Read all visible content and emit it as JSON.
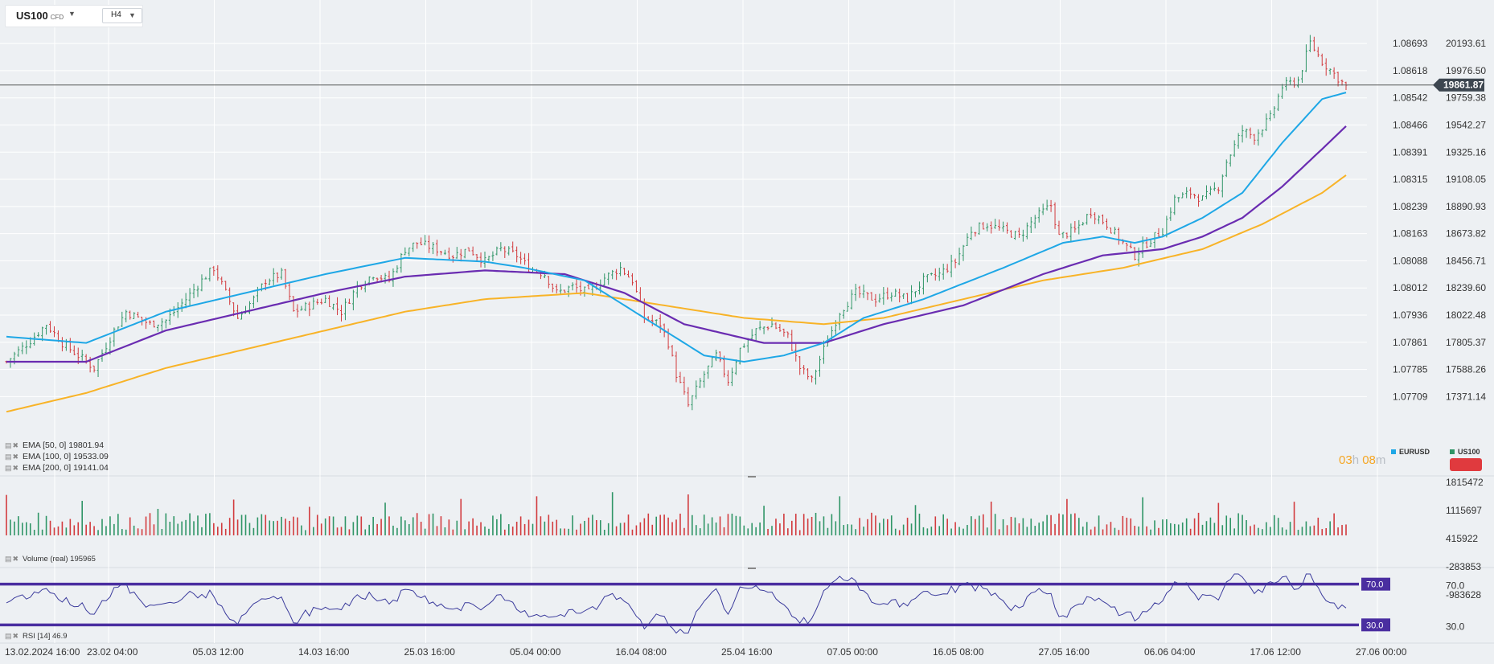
{
  "instrument": {
    "symbol": "US100",
    "type": "CFD",
    "timeframe": "H4"
  },
  "colors": {
    "ema50": "#1ea7e6",
    "ema100": "#6a2cb1",
    "ema200": "#f8b327",
    "bull": "#2f9566",
    "bear": "#d23b3e",
    "rsi": "#3b3b9c",
    "rsi_level": "#4a2ea0",
    "price_line": "#555555"
  },
  "indicators": {
    "ema50": "EMA [50, 0] 19801.94",
    "ema100": "EMA [100, 0] 19533.09",
    "ema200": "EMA [200, 0] 19141.04",
    "volume": "Volume  (real)  195965",
    "rsi": "RSI [14] 46.9"
  },
  "timer": {
    "hours": "03",
    "h": "h",
    "minutes": "08",
    "m": "m"
  },
  "compare": {
    "eurusd": "EURUSD",
    "us100": "US100"
  },
  "chart_data": [
    {
      "type": "candlestick",
      "title": "US100",
      "y_axis_right": {
        "ticks": [
          "20193.61",
          "19976.50",
          "19759.38",
          "19542.27",
          "19325.16",
          "19108.05",
          "18890.93",
          "18673.82",
          "18456.71",
          "18239.60",
          "18022.48",
          "17805.37",
          "17588.26",
          "17371.14"
        ],
        "range": [
          17200,
          20400
        ]
      },
      "y_axis_left_compare": {
        "ticks": [
          "1.08693",
          "1.08618",
          "1.08542",
          "1.08466",
          "1.08391",
          "1.08315",
          "1.08239",
          "1.08163",
          "1.08088",
          "1.08012",
          "1.07936",
          "1.07861",
          "1.07785",
          "1.07709"
        ]
      },
      "x_ticks": [
        "13.02.2024  16:00",
        "23.02  04:00",
        "05.03  12:00",
        "14.03  16:00",
        "25.03  16:00",
        "05.04  00:00",
        "16.04  08:00",
        "25.04  16:00",
        "07.05  00:00",
        "16.05  08:00",
        "27.05  16:00",
        "06.06  04:00",
        "17.06  12:00",
        "27.06  00:00"
      ],
      "current_price": "19861.87",
      "close_path": [
        [
          0,
          17650
        ],
        [
          6,
          17820
        ],
        [
          10,
          17950
        ],
        [
          14,
          17800
        ],
        [
          18,
          17700
        ],
        [
          22,
          17600
        ],
        [
          27,
          17900
        ],
        [
          30,
          18050
        ],
        [
          36,
          17950
        ],
        [
          40,
          17980
        ],
        [
          45,
          18150
        ],
        [
          49,
          18300
        ],
        [
          52,
          18400
        ],
        [
          55,
          18200
        ],
        [
          58,
          18000
        ],
        [
          62,
          18150
        ],
        [
          65,
          18300
        ],
        [
          69,
          18350
        ],
        [
          72,
          18050
        ],
        [
          76,
          18100
        ],
        [
          80,
          18150
        ],
        [
          84,
          18050
        ],
        [
          88,
          18250
        ],
        [
          92,
          18350
        ],
        [
          96,
          18300
        ],
        [
          100,
          18550
        ],
        [
          103,
          18600
        ],
        [
          108,
          18550
        ],
        [
          112,
          18500
        ],
        [
          116,
          18550
        ],
        [
          120,
          18450
        ],
        [
          124,
          18550
        ],
        [
          128,
          18500
        ],
        [
          131,
          18400
        ],
        [
          135,
          18350
        ],
        [
          138,
          18200
        ],
        [
          142,
          18250
        ],
        [
          146,
          18200
        ],
        [
          150,
          18320
        ],
        [
          154,
          18400
        ],
        [
          157,
          18300
        ],
        [
          160,
          18000
        ],
        [
          164,
          17950
        ],
        [
          166,
          17800
        ],
        [
          168,
          17550
        ],
        [
          171,
          17300
        ],
        [
          175,
          17550
        ],
        [
          178,
          17700
        ],
        [
          181,
          17500
        ],
        [
          184,
          17750
        ],
        [
          188,
          17900
        ],
        [
          192,
          17950
        ],
        [
          196,
          17850
        ],
        [
          199,
          17600
        ],
        [
          202,
          17500
        ],
        [
          205,
          17750
        ],
        [
          209,
          18050
        ],
        [
          213,
          18200
        ],
        [
          218,
          18150
        ],
        [
          222,
          18200
        ],
        [
          226,
          18150
        ],
        [
          230,
          18300
        ],
        [
          234,
          18350
        ],
        [
          238,
          18450
        ],
        [
          242,
          18700
        ],
        [
          246,
          18750
        ],
        [
          250,
          18700
        ],
        [
          254,
          18650
        ],
        [
          258,
          18800
        ],
        [
          262,
          18900
        ],
        [
          264,
          18650
        ],
        [
          268,
          18700
        ],
        [
          272,
          18850
        ],
        [
          276,
          18750
        ],
        [
          280,
          18600
        ],
        [
          283,
          18500
        ],
        [
          286,
          18600
        ],
        [
          290,
          18700
        ],
        [
          293,
          18950
        ],
        [
          297,
          19000
        ],
        [
          300,
          18950
        ],
        [
          304,
          19050
        ],
        [
          306,
          19250
        ],
        [
          310,
          19500
        ],
        [
          313,
          19450
        ],
        [
          317,
          19600
        ],
        [
          320,
          19850
        ],
        [
          324,
          19900
        ],
        [
          327,
          20200
        ],
        [
          330,
          20050
        ],
        [
          333,
          19950
        ],
        [
          336,
          19850
        ]
      ],
      "ema50": [
        [
          0,
          17850
        ],
        [
          20,
          17800
        ],
        [
          40,
          18050
        ],
        [
          60,
          18200
        ],
        [
          80,
          18350
        ],
        [
          100,
          18480
        ],
        [
          120,
          18450
        ],
        [
          130,
          18400
        ],
        [
          145,
          18300
        ],
        [
          155,
          18100
        ],
        [
          165,
          17900
        ],
        [
          175,
          17700
        ],
        [
          185,
          17650
        ],
        [
          195,
          17700
        ],
        [
          205,
          17800
        ],
        [
          215,
          18000
        ],
        [
          230,
          18150
        ],
        [
          250,
          18400
        ],
        [
          265,
          18600
        ],
        [
          275,
          18650
        ],
        [
          283,
          18600
        ],
        [
          290,
          18650
        ],
        [
          300,
          18800
        ],
        [
          310,
          19000
        ],
        [
          320,
          19400
        ],
        [
          330,
          19750
        ],
        [
          336,
          19801.94
        ]
      ],
      "ema100": [
        [
          0,
          17650
        ],
        [
          20,
          17650
        ],
        [
          40,
          17900
        ],
        [
          60,
          18050
        ],
        [
          80,
          18200
        ],
        [
          100,
          18330
        ],
        [
          120,
          18380
        ],
        [
          140,
          18350
        ],
        [
          155,
          18200
        ],
        [
          170,
          17950
        ],
        [
          190,
          17800
        ],
        [
          205,
          17800
        ],
        [
          220,
          17950
        ],
        [
          240,
          18100
        ],
        [
          260,
          18350
        ],
        [
          275,
          18500
        ],
        [
          290,
          18550
        ],
        [
          300,
          18650
        ],
        [
          310,
          18800
        ],
        [
          320,
          19050
        ],
        [
          330,
          19350
        ],
        [
          336,
          19533.09
        ]
      ],
      "ema200": [
        [
          0,
          17250
        ],
        [
          20,
          17400
        ],
        [
          40,
          17600
        ],
        [
          60,
          17750
        ],
        [
          80,
          17900
        ],
        [
          100,
          18050
        ],
        [
          120,
          18150
        ],
        [
          145,
          18200
        ],
        [
          165,
          18100
        ],
        [
          185,
          18000
        ],
        [
          205,
          17950
        ],
        [
          220,
          18000
        ],
        [
          240,
          18150
        ],
        [
          260,
          18300
        ],
        [
          280,
          18400
        ],
        [
          300,
          18550
        ],
        [
          315,
          18750
        ],
        [
          330,
          19000
        ],
        [
          336,
          19141.04
        ]
      ]
    },
    {
      "type": "bar",
      "title": "Volume (real)",
      "y_axis_ticks": [
        "1815472",
        "1115697",
        "415922",
        "-283853",
        "-983628"
      ],
      "range": [
        -983628,
        1815472
      ],
      "last_value": 195965
    },
    {
      "type": "line",
      "title": "RSI [14]",
      "y_axis_ticks": [
        "70.0",
        "30.0"
      ],
      "levels": [
        70,
        30
      ],
      "range": [
        20,
        80
      ],
      "last_value": 46.9
    }
  ]
}
